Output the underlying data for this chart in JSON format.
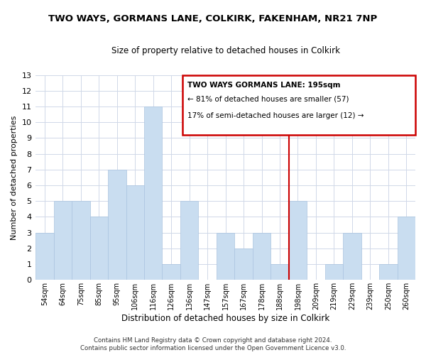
{
  "title": "TWO WAYS, GORMANS LANE, COLKIRK, FAKENHAM, NR21 7NP",
  "subtitle": "Size of property relative to detached houses in Colkirk",
  "xlabel": "Distribution of detached houses by size in Colkirk",
  "ylabel": "Number of detached properties",
  "bins": [
    "54sqm",
    "64sqm",
    "75sqm",
    "85sqm",
    "95sqm",
    "106sqm",
    "116sqm",
    "126sqm",
    "136sqm",
    "147sqm",
    "157sqm",
    "167sqm",
    "178sqm",
    "188sqm",
    "198sqm",
    "209sqm",
    "219sqm",
    "229sqm",
    "239sqm",
    "250sqm",
    "260sqm"
  ],
  "counts": [
    3,
    5,
    5,
    4,
    7,
    6,
    11,
    1,
    5,
    0,
    3,
    2,
    3,
    1,
    5,
    0,
    1,
    3,
    0,
    1,
    4
  ],
  "bar_color": "#c9ddf0",
  "bar_edge_color": "#aac4e0",
  "property_line_x": 13.5,
  "annotation_title": "TWO WAYS GORMANS LANE: 195sqm",
  "annotation_line1": "← 81% of detached houses are smaller (57)",
  "annotation_line2": "17% of semi-detached houses are larger (12) →",
  "annotation_box_color": "#ffffff",
  "annotation_box_edge_color": "#cc0000",
  "property_line_color": "#cc0000",
  "ylim": [
    0,
    13
  ],
  "yticks": [
    0,
    1,
    2,
    3,
    4,
    5,
    6,
    7,
    8,
    9,
    10,
    11,
    12,
    13
  ],
  "footer1": "Contains HM Land Registry data © Crown copyright and database right 2024.",
  "footer2": "Contains public sector information licensed under the Open Government Licence v3.0.",
  "background_color": "#ffffff",
  "grid_color": "#d0d8e8"
}
